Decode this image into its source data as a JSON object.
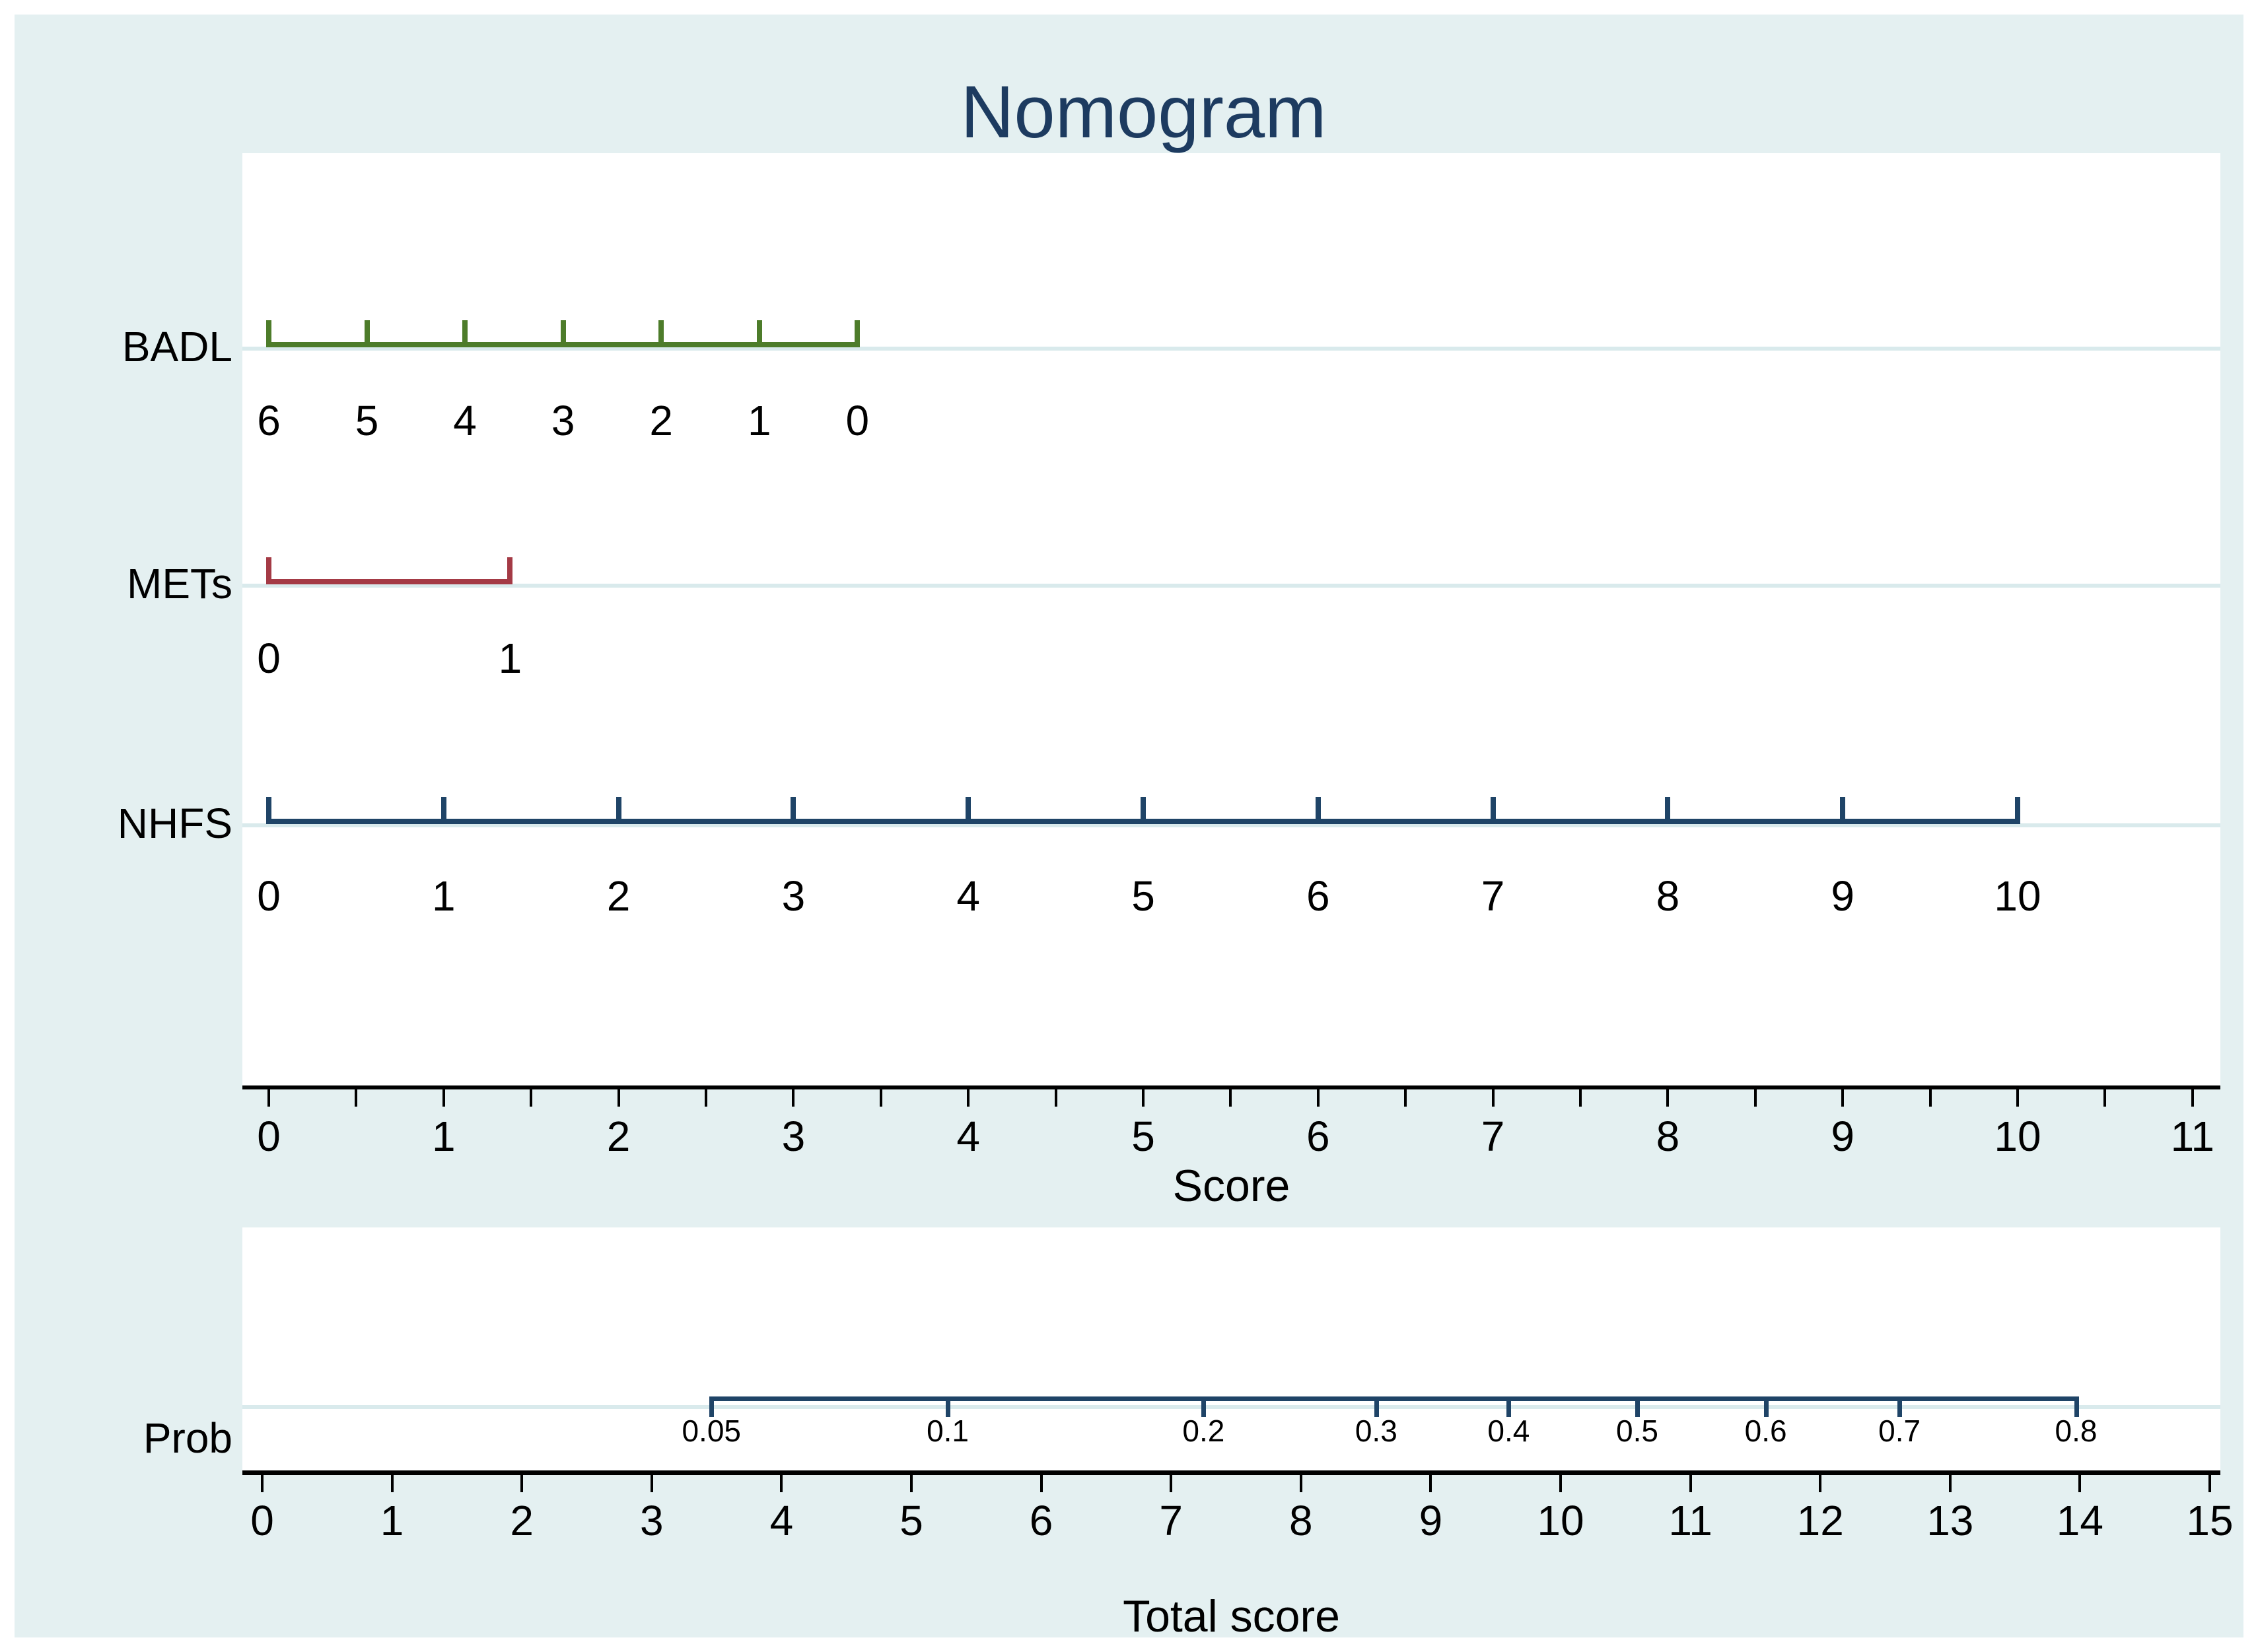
{
  "title": "Nomogram",
  "colors": {
    "background": "#e4f0f1",
    "plot_background": "#ffffff",
    "title_text": "#1d3b60",
    "gridline": "#d9eaec",
    "badl_axis": "#4d7c2a",
    "mets_axis": "#a43a45",
    "nhfs_axis": "#1f4467",
    "prob_axis": "#1f4467",
    "axis_text": "#000000"
  },
  "chart_data": [
    {
      "type": "nomogram",
      "panel": "score",
      "title": "Nomogram",
      "xlabel": "Score",
      "xlim": [
        -0.15,
        11.16
      ],
      "x_major_ticks": [
        0,
        1,
        2,
        3,
        4,
        5,
        6,
        7,
        8,
        9,
        10,
        11
      ],
      "x_minor_tick_step": 0.5,
      "grid": true,
      "rows": [
        {
          "name": "BADL",
          "color": "#4d7c2a",
          "span": [
            0,
            3.366
          ],
          "ticks": [
            {
              "value": "6",
              "score": 0
            },
            {
              "value": "5",
              "score": 0.561
            },
            {
              "value": "4",
              "score": 1.122
            },
            {
              "value": "3",
              "score": 1.683
            },
            {
              "value": "2",
              "score": 2.244
            },
            {
              "value": "1",
              "score": 2.805
            },
            {
              "value": "0",
              "score": 3.366
            }
          ]
        },
        {
          "name": "METs",
          "color": "#a43a45",
          "span": [
            0,
            1.38
          ],
          "ticks": [
            {
              "value": "0",
              "score": 0
            },
            {
              "value": "1",
              "score": 1.38
            }
          ]
        },
        {
          "name": "NHFS",
          "color": "#1f4467",
          "span": [
            0,
            10
          ],
          "ticks": [
            {
              "value": "0",
              "score": 0
            },
            {
              "value": "1",
              "score": 1
            },
            {
              "value": "2",
              "score": 2
            },
            {
              "value": "3",
              "score": 3
            },
            {
              "value": "4",
              "score": 4
            },
            {
              "value": "5",
              "score": 5
            },
            {
              "value": "6",
              "score": 6
            },
            {
              "value": "7",
              "score": 7
            },
            {
              "value": "8",
              "score": 8
            },
            {
              "value": "9",
              "score": 9
            },
            {
              "value": "10",
              "score": 10
            }
          ]
        }
      ]
    },
    {
      "type": "nomogram-probability",
      "panel": "probability",
      "xlabel": "Total score",
      "xlim": [
        -0.2,
        15.2
      ],
      "x_major_ticks": [
        0,
        1,
        2,
        3,
        4,
        5,
        6,
        7,
        8,
        9,
        10,
        11,
        12,
        13,
        14,
        15
      ],
      "grid": true,
      "row": {
        "name": "Prob",
        "color": "#1f4467",
        "span": [
          3.46,
          13.97
        ],
        "ticks": [
          {
            "value": "0.05",
            "total_score": 3.46
          },
          {
            "value": "0.1",
            "total_score": 5.28
          },
          {
            "value": "0.2",
            "total_score": 7.25
          },
          {
            "value": "0.3",
            "total_score": 8.58
          },
          {
            "value": "0.4",
            "total_score": 9.6
          },
          {
            "value": "0.5",
            "total_score": 10.59
          },
          {
            "value": "0.6",
            "total_score": 11.58
          },
          {
            "value": "0.7",
            "total_score": 12.61
          },
          {
            "value": "0.8",
            "total_score": 13.97
          }
        ]
      }
    }
  ]
}
